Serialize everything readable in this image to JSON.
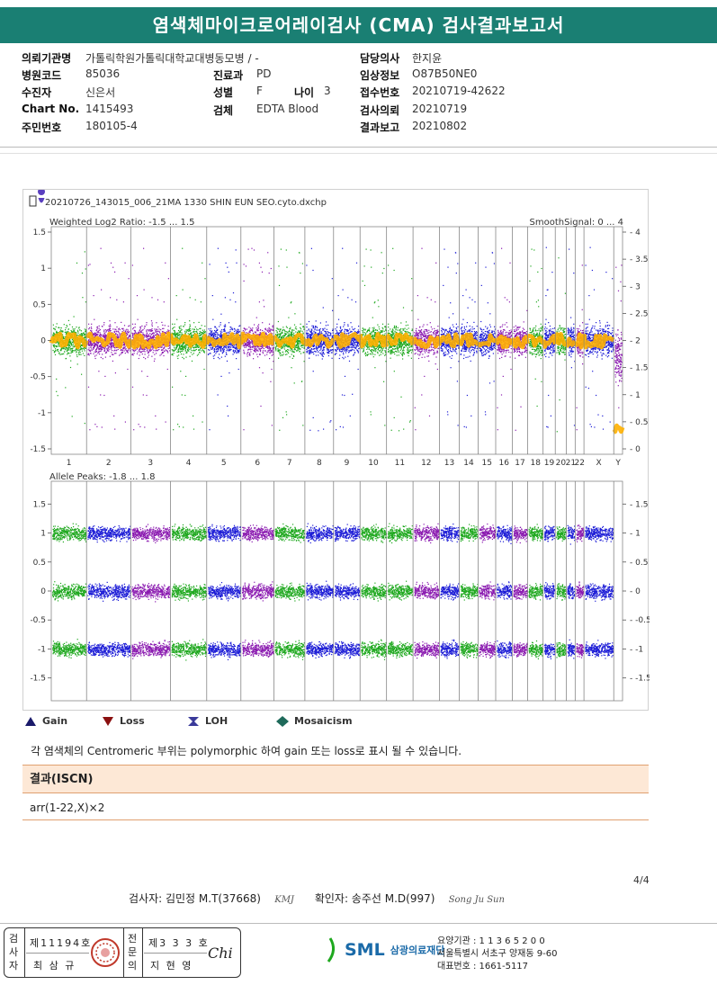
{
  "header": {
    "title": "염색체마이크로어레이검사 (CMA) 검사결과보고서"
  },
  "patient": {
    "inst_label": "의뢰기관명",
    "inst_value": "가톨릭학원가톨릭대학교대병동모병 / -",
    "code_label": "병원코드",
    "code_value": "85036",
    "name_label": "수진자",
    "name_value": "신은서",
    "chart_label": "Chart No.",
    "chart_value": "1415493",
    "id_label": "주민번호",
    "id_value": "180105-4",
    "dept_label": "진료과",
    "dept_value": "PD",
    "sex_label": "성별",
    "sex_value": "F",
    "age_label": "나이",
    "age_value": "3",
    "spec_label": "검체",
    "spec_value": "EDTA Blood",
    "doctor_label": "담당의사",
    "doctor_value": "한지윤",
    "clin_label": "임상정보",
    "clin_value": "O87B50NE0",
    "recv_label": "접수번호",
    "recv_value": "20210719-42622",
    "req_label": "검사의뢰",
    "req_value": "20210719",
    "rep_label": "결과보고",
    "rep_value": "20210802"
  },
  "plot": {
    "filename": "20210726_143015_006_21MA 1330 SHIN EUN SEO.cyto.dxchp",
    "top_title": "Weighted Log2 Ratio: -1.5 ... 1.5",
    "top_right_title": "SmoothSignal: 0 ... 4",
    "bottom_title": "Allele Peaks: -1.8 ... 1.8",
    "top_left_ticks": [
      "1.5",
      "1",
      "0.5",
      "0",
      "-0.5",
      "-1",
      "-1.5"
    ],
    "top_right_ticks": [
      "4",
      "3.5",
      "3",
      "2.5",
      "2",
      "1.5",
      "1",
      "0.5",
      "0"
    ],
    "bottom_left_ticks": [
      "1.5",
      "1",
      "0.5",
      "0",
      "-0.5",
      "-1",
      "-1.5"
    ],
    "bottom_right_ticks": [
      "1.5",
      "1",
      "0.5",
      "0",
      "-0.5",
      "-1",
      "-1.5"
    ],
    "chromosomes": [
      "1",
      "2",
      "3",
      "4",
      "5",
      "6",
      "7",
      "8",
      "9",
      "10",
      "11",
      "12",
      "13",
      "14",
      "15",
      "16",
      "17",
      "18",
      "19",
      "20",
      "21",
      "22",
      "X",
      "Y"
    ],
    "colors": {
      "green": "#1ea81e",
      "blue": "#1c1cd6",
      "purple": "#8a1ab0",
      "orange": "#ffb000"
    }
  },
  "legend": {
    "gain": "Gain",
    "loss": "Loss",
    "loh": "LOH",
    "mosaicism": "Mosaicism"
  },
  "note": "각 염색체의 Centromeric 부위는 polymorphic 하여 gain 또는 loss로 표시 될 수 있습니다.",
  "result": {
    "heading": "결과(ISCN)",
    "value": "arr(1-22,X)×2"
  },
  "page_num": "4/4",
  "signoff": {
    "tester": "검사자: 김민정 M.T(37668)",
    "tester_sig": "KMJ",
    "confirmer": "확인자: 송주선 M.D(997)",
    "confirmer_sig": "Song Ju Sun"
  },
  "stamp": {
    "label1": "검사자",
    "no1": "제11194호",
    "person1": "최 삼 규",
    "label2": "전문의",
    "no2": "제3 3 3 호",
    "person2": "지 현 영",
    "sig2": "Chi"
  },
  "org": {
    "logo": "SML",
    "name": "삼광의료재단",
    "line1": "요양기관 : 1 1 3 6 5 2 0 0",
    "line2": "서울특별시 서초구 양재동 9-60",
    "line3": "대표번호 : 1661-5117"
  }
}
